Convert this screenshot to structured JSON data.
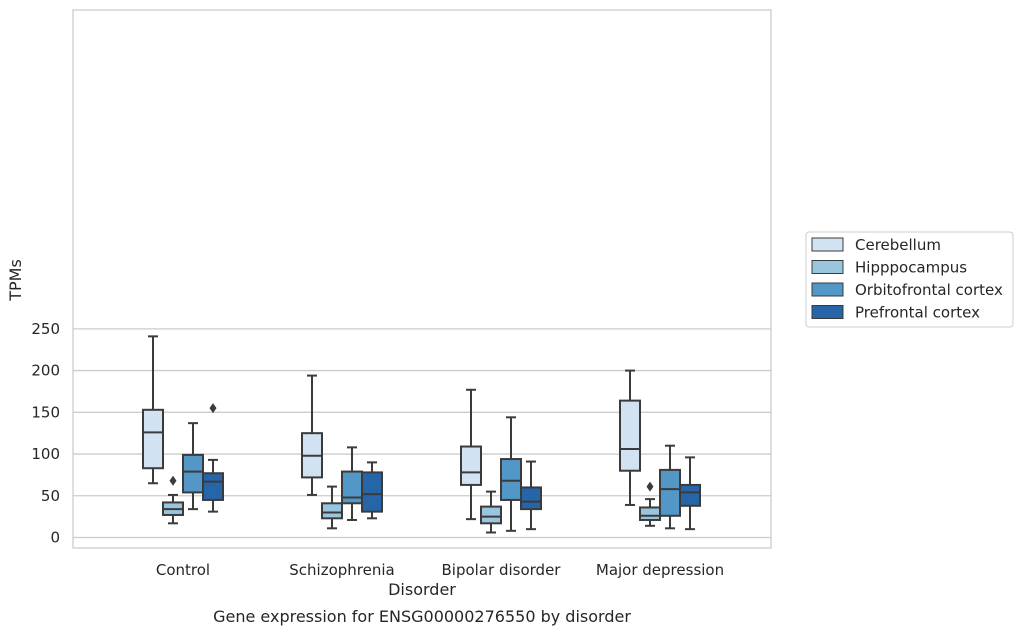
{
  "chart_data": {
    "type": "box",
    "caption": "Gene expression for ENSG00000276550 by disorder",
    "xlabel": "Disorder",
    "ylabel": "TPMs",
    "ylim": [
      -5,
      255
    ],
    "yticks": [
      0,
      50,
      100,
      150,
      200,
      250
    ],
    "grid": "horizontal",
    "legend_position": "right",
    "categories": [
      "Control",
      "Schizophrenia",
      "Bipolar disorder",
      "Major depression"
    ],
    "series": [
      {
        "name": "Cerebellum",
        "color": "#d1e2f2",
        "boxes": [
          {
            "whislo": 65,
            "q1": 83,
            "med": 126,
            "q3": 153,
            "whishi": 241,
            "fliers": []
          },
          {
            "whislo": 51,
            "q1": 72,
            "med": 98,
            "q3": 125,
            "whishi": 194,
            "fliers": []
          },
          {
            "whislo": 22,
            "q1": 63,
            "med": 78,
            "q3": 109,
            "whishi": 177,
            "fliers": []
          },
          {
            "whislo": 39,
            "q1": 80,
            "med": 106,
            "q3": 164,
            "whishi": 200,
            "fliers": []
          }
        ]
      },
      {
        "name": "Hipppocampus",
        "color": "#9ac5df",
        "boxes": [
          {
            "whislo": 17,
            "q1": 27,
            "med": 34,
            "q3": 42,
            "whishi": 51,
            "fliers": [
              68
            ]
          },
          {
            "whislo": 11,
            "q1": 23,
            "med": 30,
            "q3": 41,
            "whishi": 61,
            "fliers": []
          },
          {
            "whislo": 6,
            "q1": 17,
            "med": 25,
            "q3": 37,
            "whishi": 55,
            "fliers": []
          },
          {
            "whislo": 14,
            "q1": 21,
            "med": 26,
            "q3": 36,
            "whishi": 46,
            "fliers": [
              61
            ]
          }
        ]
      },
      {
        "name": "Orbitofrontal cortex",
        "color": "#5297c6",
        "boxes": [
          {
            "whislo": 34,
            "q1": 54,
            "med": 79,
            "q3": 99,
            "whishi": 137,
            "fliers": []
          },
          {
            "whislo": 21,
            "q1": 41,
            "med": 48,
            "q3": 79,
            "whishi": 108,
            "fliers": []
          },
          {
            "whislo": 8,
            "q1": 45,
            "med": 68,
            "q3": 94,
            "whishi": 144,
            "fliers": []
          },
          {
            "whislo": 11,
            "q1": 26,
            "med": 58,
            "q3": 81,
            "whishi": 110,
            "fliers": []
          }
        ]
      },
      {
        "name": "Prefrontal cortex",
        "color": "#2565a8",
        "boxes": [
          {
            "whislo": 31,
            "q1": 45,
            "med": 67,
            "q3": 77,
            "whishi": 93,
            "fliers": [
              155
            ]
          },
          {
            "whislo": 23,
            "q1": 31,
            "med": 52,
            "q3": 78,
            "whishi": 90,
            "fliers": []
          },
          {
            "whislo": 10,
            "q1": 34,
            "med": 43,
            "q3": 60,
            "whishi": 91,
            "fliers": []
          },
          {
            "whislo": 10,
            "q1": 38,
            "med": 54,
            "q3": 63,
            "whishi": 96,
            "fliers": []
          }
        ]
      }
    ]
  }
}
